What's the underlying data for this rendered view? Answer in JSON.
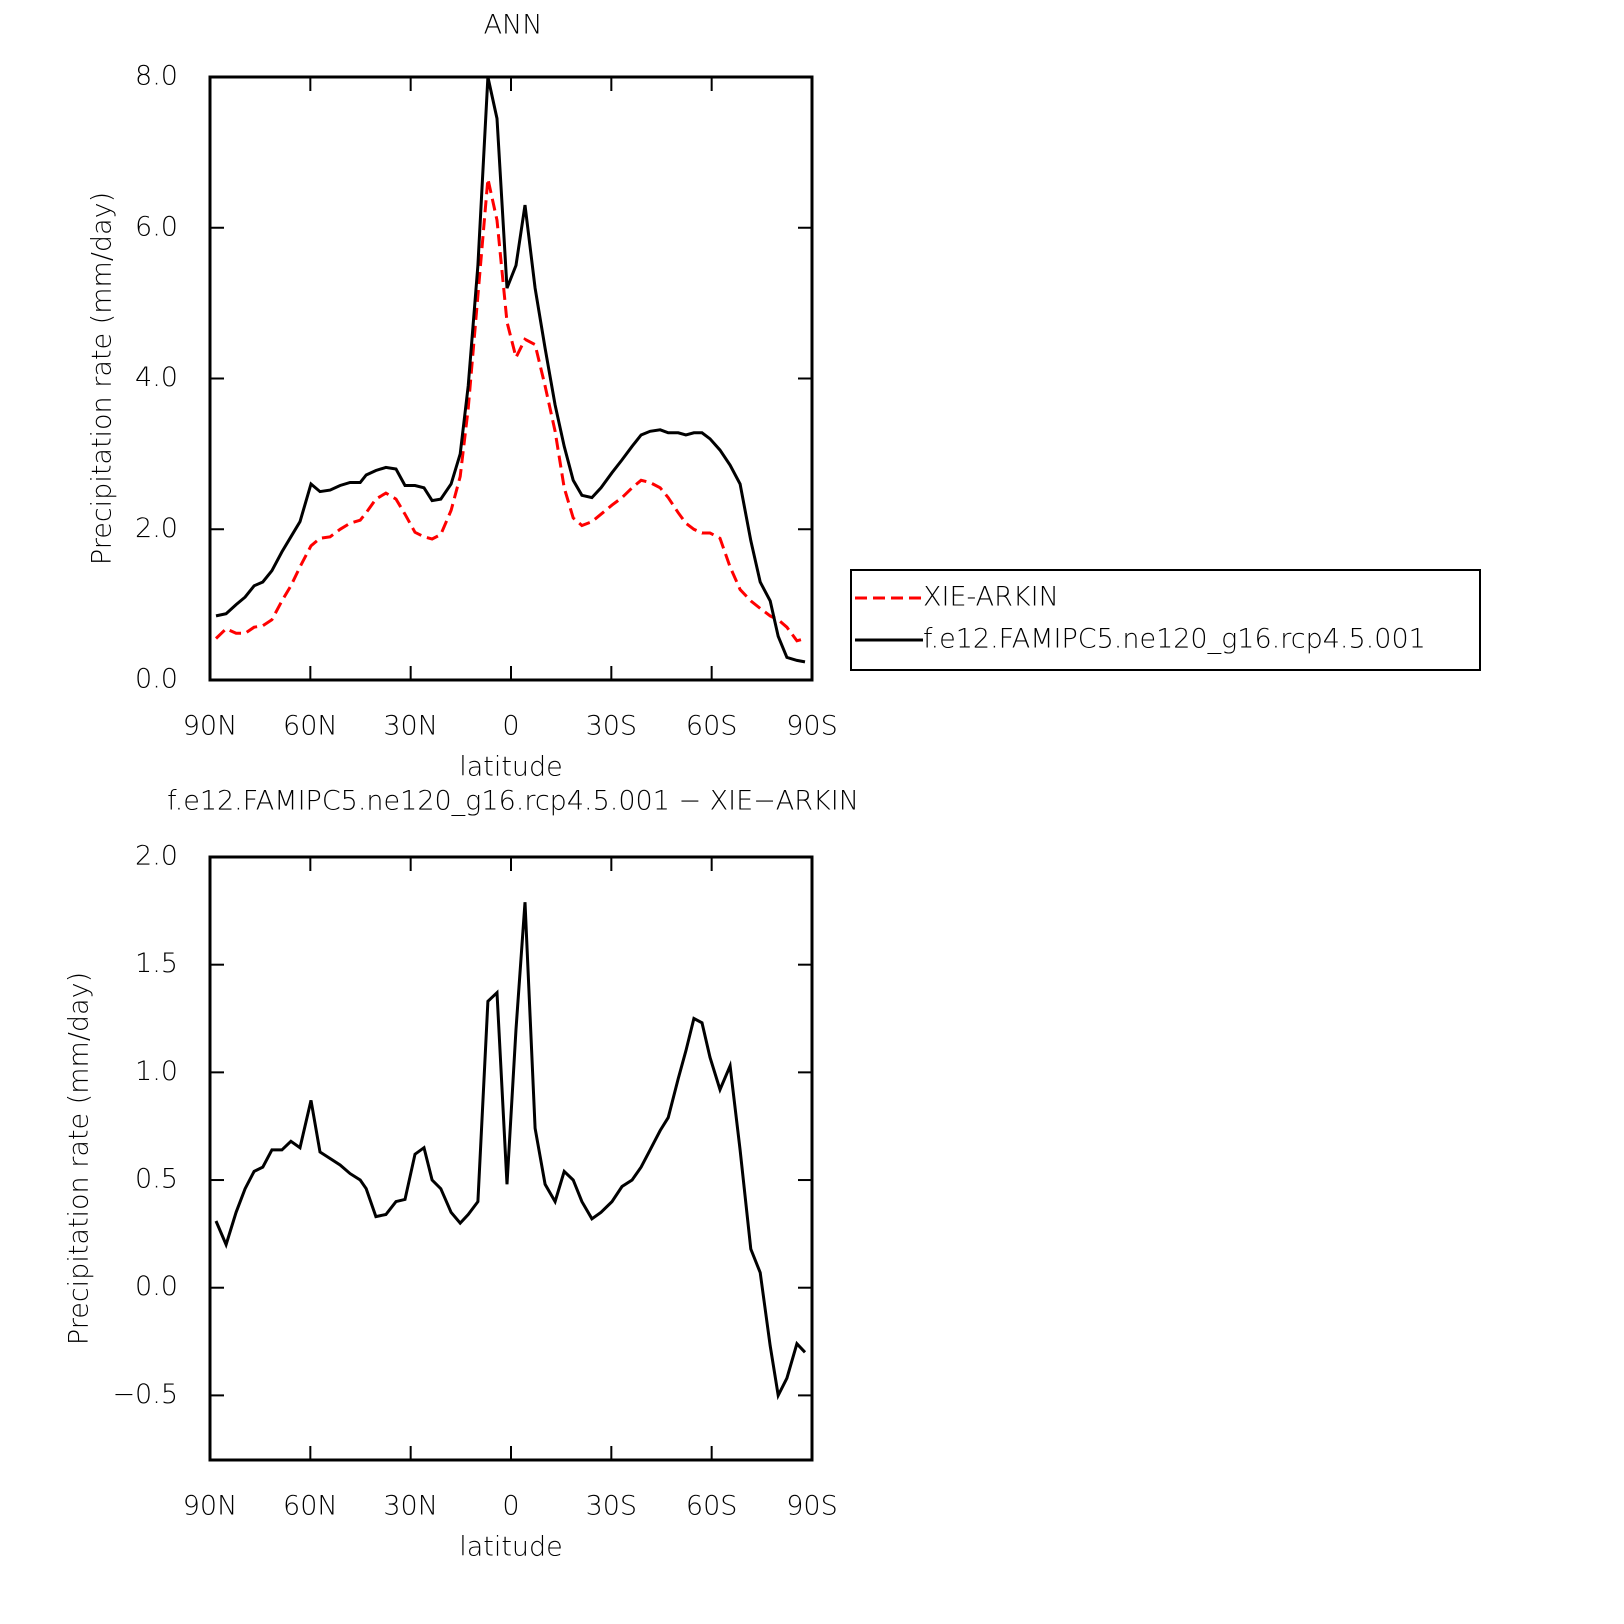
{
  "chart_data": [
    {
      "type": "line",
      "title": "ANN",
      "xlabel": "latitude",
      "ylabel": "Precipitation rate (mm/day)",
      "xlim": [
        90,
        -90
      ],
      "ylim": [
        0,
        8
      ],
      "xticks": [
        {
          "value": 90,
          "label": "90N"
        },
        {
          "value": 60,
          "label": "60N"
        },
        {
          "value": 30,
          "label": "30N"
        },
        0,
        {
          "value": -30,
          "label": "30S"
        },
        {
          "value": -60,
          "label": "60S"
        },
        {
          "value": -90,
          "label": "90S"
        }
      ],
      "yticks": [
        {
          "value": 0,
          "label": "0.0"
        },
        {
          "value": 2,
          "label": "2.0"
        },
        {
          "value": 4,
          "label": "4.0"
        },
        {
          "value": 6,
          "label": "6.0"
        },
        {
          "value": 8,
          "label": "8.0"
        }
      ],
      "x": [
        88.2,
        85.2,
        82.2,
        79.5,
        76.8,
        74.2,
        71.5,
        68.5,
        65.8,
        63.1,
        59.8,
        57.1,
        54.1,
        51.1,
        48.1,
        45.1,
        43.3,
        40.4,
        37.4,
        34.4,
        31.7,
        28.7,
        26.0,
        23.6,
        21.0,
        17.9,
        15.2,
        12.8,
        9.9,
        6.9,
        4.2,
        1.2,
        -1.5,
        -4.2,
        -7.2,
        -10.2,
        -13.2,
        -15.9,
        -18.6,
        -21.2,
        -24.2,
        -26.9,
        -30.2,
        -33.2,
        -36.2,
        -38.9,
        -41.6,
        -44.6,
        -47.0,
        -50.0,
        -52.3,
        -54.7,
        -57.1,
        -59.5,
        -62.5,
        -65.5,
        -68.5,
        -71.7,
        -74.5,
        -77.5,
        -79.9,
        -82.5,
        -85.5,
        -87.9
      ],
      "series": [
        {
          "name": "XIE-ARKIN",
          "color": "#ff0000",
          "dash": true,
          "values": [
            0.55,
            0.68,
            0.62,
            0.62,
            0.7,
            0.72,
            0.8,
            1.05,
            1.25,
            1.5,
            1.78,
            1.88,
            1.9,
            2.0,
            2.08,
            2.12,
            2.22,
            2.4,
            2.48,
            2.4,
            2.2,
            1.96,
            1.9,
            1.87,
            1.93,
            2.25,
            2.7,
            3.6,
            5.1,
            6.65,
            6.1,
            4.75,
            4.28,
            4.52,
            4.45,
            3.9,
            3.3,
            2.55,
            2.15,
            2.05,
            2.1,
            2.2,
            2.32,
            2.42,
            2.55,
            2.65,
            2.62,
            2.55,
            2.42,
            2.22,
            2.08,
            2.0,
            1.95,
            1.95,
            1.88,
            1.5,
            1.2,
            1.05,
            0.95,
            0.85,
            0.8,
            0.7,
            0.52,
            0.55
          ]
        },
        {
          "name": "f.e12.FAMIPC5.ne120_g16.rcp4.5.001",
          "color": "#000000",
          "dash": false,
          "values": [
            0.85,
            0.88,
            1.0,
            1.1,
            1.25,
            1.3,
            1.45,
            1.7,
            1.9,
            2.1,
            2.6,
            2.5,
            2.52,
            2.58,
            2.62,
            2.62,
            2.72,
            2.78,
            2.82,
            2.8,
            2.58,
            2.58,
            2.55,
            2.38,
            2.4,
            2.6,
            3.0,
            3.9,
            5.5,
            8.0,
            7.45,
            5.2,
            5.5,
            6.3,
            5.2,
            4.4,
            3.65,
            3.1,
            2.65,
            2.45,
            2.42,
            2.55,
            2.75,
            2.92,
            3.1,
            3.25,
            3.3,
            3.32,
            3.28,
            3.28,
            3.25,
            3.28,
            3.28,
            3.2,
            3.05,
            2.85,
            2.6,
            1.85,
            1.3,
            1.05,
            0.58,
            0.3,
            0.26,
            0.24
          ]
        }
      ]
    },
    {
      "type": "line",
      "title": "f.e12.FAMIPC5.ne120_g16.rcp4.5.001 − XIE−ARKIN",
      "xlabel": "latitude",
      "ylabel": "Precipitation rate (mm/day)",
      "xlim": [
        90,
        -90
      ],
      "ylim": [
        -0.8,
        2.0
      ],
      "xticks": [
        {
          "value": 90,
          "label": "90N"
        },
        {
          "value": 60,
          "label": "60N"
        },
        {
          "value": 30,
          "label": "30N"
        },
        0,
        {
          "value": -30,
          "label": "30S"
        },
        {
          "value": -60,
          "label": "60S"
        },
        {
          "value": -90,
          "label": "90S"
        }
      ],
      "yticks": [
        {
          "value": -0.5,
          "label": "−0.5"
        },
        {
          "value": 0,
          "label": "0.0"
        },
        0.5,
        {
          "value": 1,
          "label": "1.0"
        },
        1.5,
        {
          "value": 2,
          "label": "2.0"
        }
      ],
      "x": [
        88.2,
        85.2,
        82.2,
        79.5,
        76.8,
        74.2,
        71.5,
        68.5,
        65.8,
        63.1,
        59.8,
        57.1,
        54.1,
        51.1,
        48.1,
        45.1,
        43.3,
        40.4,
        37.4,
        34.4,
        31.7,
        28.7,
        26.0,
        23.6,
        21.0,
        17.9,
        15.2,
        12.8,
        9.9,
        6.9,
        4.2,
        1.2,
        -1.5,
        -4.2,
        -7.2,
        -10.2,
        -13.2,
        -15.9,
        -18.6,
        -21.2,
        -24.2,
        -26.9,
        -30.2,
        -33.2,
        -36.2,
        -38.9,
        -41.6,
        -44.6,
        -47.0,
        -50.0,
        -52.3,
        -54.7,
        -57.1,
        -59.5,
        -62.5,
        -65.5,
        -68.5,
        -71.7,
        -74.5,
        -77.5,
        -79.9,
        -82.5,
        -85.5,
        -87.9
      ],
      "color": "#000000",
      "values": [
        0.31,
        0.2,
        0.35,
        0.46,
        0.54,
        0.56,
        0.64,
        0.64,
        0.68,
        0.65,
        0.87,
        0.63,
        0.6,
        0.57,
        0.53,
        0.5,
        0.46,
        0.33,
        0.34,
        0.4,
        0.41,
        0.62,
        0.65,
        0.5,
        0.46,
        0.35,
        0.3,
        0.34,
        0.4,
        1.33,
        1.37,
        0.48,
        1.2,
        1.79,
        0.74,
        0.48,
        0.4,
        0.54,
        0.5,
        0.4,
        0.32,
        0.35,
        0.4,
        0.47,
        0.5,
        0.56,
        0.64,
        0.73,
        0.79,
        0.97,
        1.1,
        1.25,
        1.23,
        1.07,
        0.92,
        1.03,
        0.64,
        0.18,
        0.07,
        -0.27,
        -0.5,
        -0.42,
        -0.26,
        -0.3
      ]
    }
  ]
}
